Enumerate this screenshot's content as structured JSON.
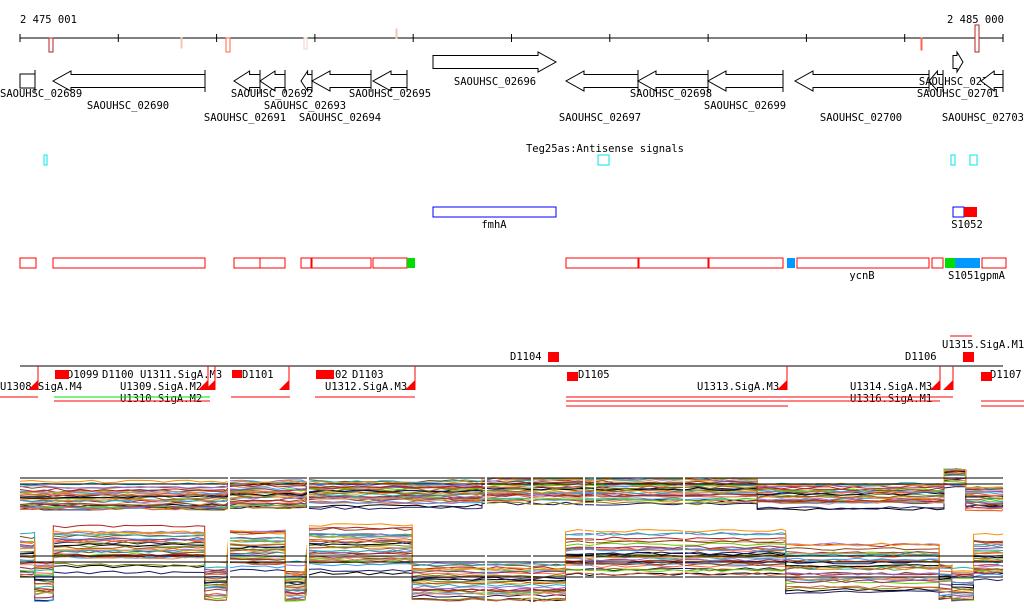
{
  "ruler": {
    "start_label": "2 475 001",
    "end_label": "2 485 000",
    "start_bp": 2475001,
    "end_bp": 2485000
  },
  "colors": {
    "gene": "#000000",
    "operon": "#ff0000",
    "antisense": "#00e5ee",
    "srna": "#0000ff",
    "green": "#00dd00",
    "blue": "#0099ff"
  },
  "genes": [
    {
      "label": "SAOUHSC_02689",
      "strand": "box"
    },
    {
      "label": "SAOUHSC_02690",
      "strand": "-"
    },
    {
      "label": "SAOUHSC_02691",
      "strand": "-"
    },
    {
      "label": "SAOUHSC_02692",
      "strand": "-"
    },
    {
      "label": "SAOUHSC_02693",
      "strand": "-"
    },
    {
      "label": "SAOUHSC_02694",
      "strand": "-"
    },
    {
      "label": "SAOUHSC_02695",
      "strand": "-"
    },
    {
      "label": "SAOUHSC_02696",
      "strand": "+"
    },
    {
      "label": "SAOUHSC_02697",
      "strand": "-"
    },
    {
      "label": "SAOUHSC_02698",
      "strand": "-"
    },
    {
      "label": "SAOUHSC_02699",
      "strand": "-"
    },
    {
      "label": "SAOUHSC_02700",
      "strand": "-"
    },
    {
      "label": "SAOUHSC_02701",
      "strand": "-"
    },
    {
      "label": "SAOUHSC_02702",
      "strand": "+"
    },
    {
      "label": "SAOUHSC_02703",
      "strand": "-"
    }
  ],
  "antisense": {
    "label": "Teg25as:Antisense signals"
  },
  "srna": [
    {
      "label": "fmhA"
    },
    {
      "label": "S1052"
    }
  ],
  "operons": {
    "labels": [
      {
        "label": "ycnB"
      },
      {
        "label": "S1051gpmA"
      }
    ]
  },
  "tss_track": {
    "labels": [
      {
        "label": "U1308.SigA.M4"
      },
      {
        "label": "D1099"
      },
      {
        "label": "D1100"
      },
      {
        "label": "U1309.SigA.M2"
      },
      {
        "label": "U1310.SigA.M2"
      },
      {
        "label": "U1311.SigA.M3"
      },
      {
        "label": "D1101"
      },
      {
        "label": "D1102"
      },
      {
        "label": "D1103"
      },
      {
        "label": "U1312.SigA.M3"
      },
      {
        "label": "D1104"
      },
      {
        "label": "D1105"
      },
      {
        "label": "U1313.SigA.M3"
      },
      {
        "label": "U1314.SigA.M3"
      },
      {
        "label": "U1316.SigA.M1"
      },
      {
        "label": "D1106"
      },
      {
        "label": "U1315.SigA.M1"
      },
      {
        "label": "D1107"
      }
    ]
  },
  "expression": {
    "top_panel": [
      {
        "start_bp": 2475001,
        "end_bp": 2477100,
        "level": 0.45
      },
      {
        "start_bp": 2477130,
        "end_bp": 2477900,
        "level": 0.5
      },
      {
        "start_bp": 2477940,
        "end_bp": 2479700,
        "level": 0.55
      },
      {
        "start_bp": 2479700,
        "end_bp": 2482500,
        "level": 0.6
      },
      {
        "start_bp": 2482500,
        "end_bp": 2484400,
        "level": 0.5
      },
      {
        "start_bp": 2484400,
        "end_bp": 2484620,
        "level": 0.95
      },
      {
        "start_bp": 2484620,
        "end_bp": 2485000,
        "level": 0.45
      }
    ],
    "bottom_panel": [
      {
        "start_bp": 2475001,
        "end_bp": 2475150,
        "level": 0.6
      },
      {
        "start_bp": 2475150,
        "end_bp": 2475340,
        "level": 0.25
      },
      {
        "start_bp": 2475340,
        "end_bp": 2476880,
        "level": 0.72
      },
      {
        "start_bp": 2476880,
        "end_bp": 2477100,
        "level": 0.22
      },
      {
        "start_bp": 2477130,
        "end_bp": 2477700,
        "level": 0.68
      },
      {
        "start_bp": 2477700,
        "end_bp": 2477900,
        "level": 0.2
      },
      {
        "start_bp": 2477940,
        "end_bp": 2478990,
        "level": 0.72
      },
      {
        "start_bp": 2478990,
        "end_bp": 2480550,
        "level": 0.25
      },
      {
        "start_bp": 2480550,
        "end_bp": 2482790,
        "level": 0.6
      },
      {
        "start_bp": 2482790,
        "end_bp": 2484350,
        "level": 0.45
      },
      {
        "start_bp": 2484350,
        "end_bp": 2484480,
        "level": 0.28
      },
      {
        "start_bp": 2484480,
        "end_bp": 2484700,
        "level": 0.15
      },
      {
        "start_bp": 2484700,
        "end_bp": 2485000,
        "level": 0.55
      }
    ],
    "series_count": 30,
    "palette": [
      "#000000",
      "#1a1a66",
      "#808000",
      "#cd5c3c",
      "#ff6347",
      "#3399ff",
      "#66cc00",
      "#993366",
      "#cc9966",
      "#8b4513",
      "#b22222",
      "#9370db",
      "#20b2aa",
      "#ff8c00",
      "#a0522d",
      "#6b8e23"
    ]
  }
}
